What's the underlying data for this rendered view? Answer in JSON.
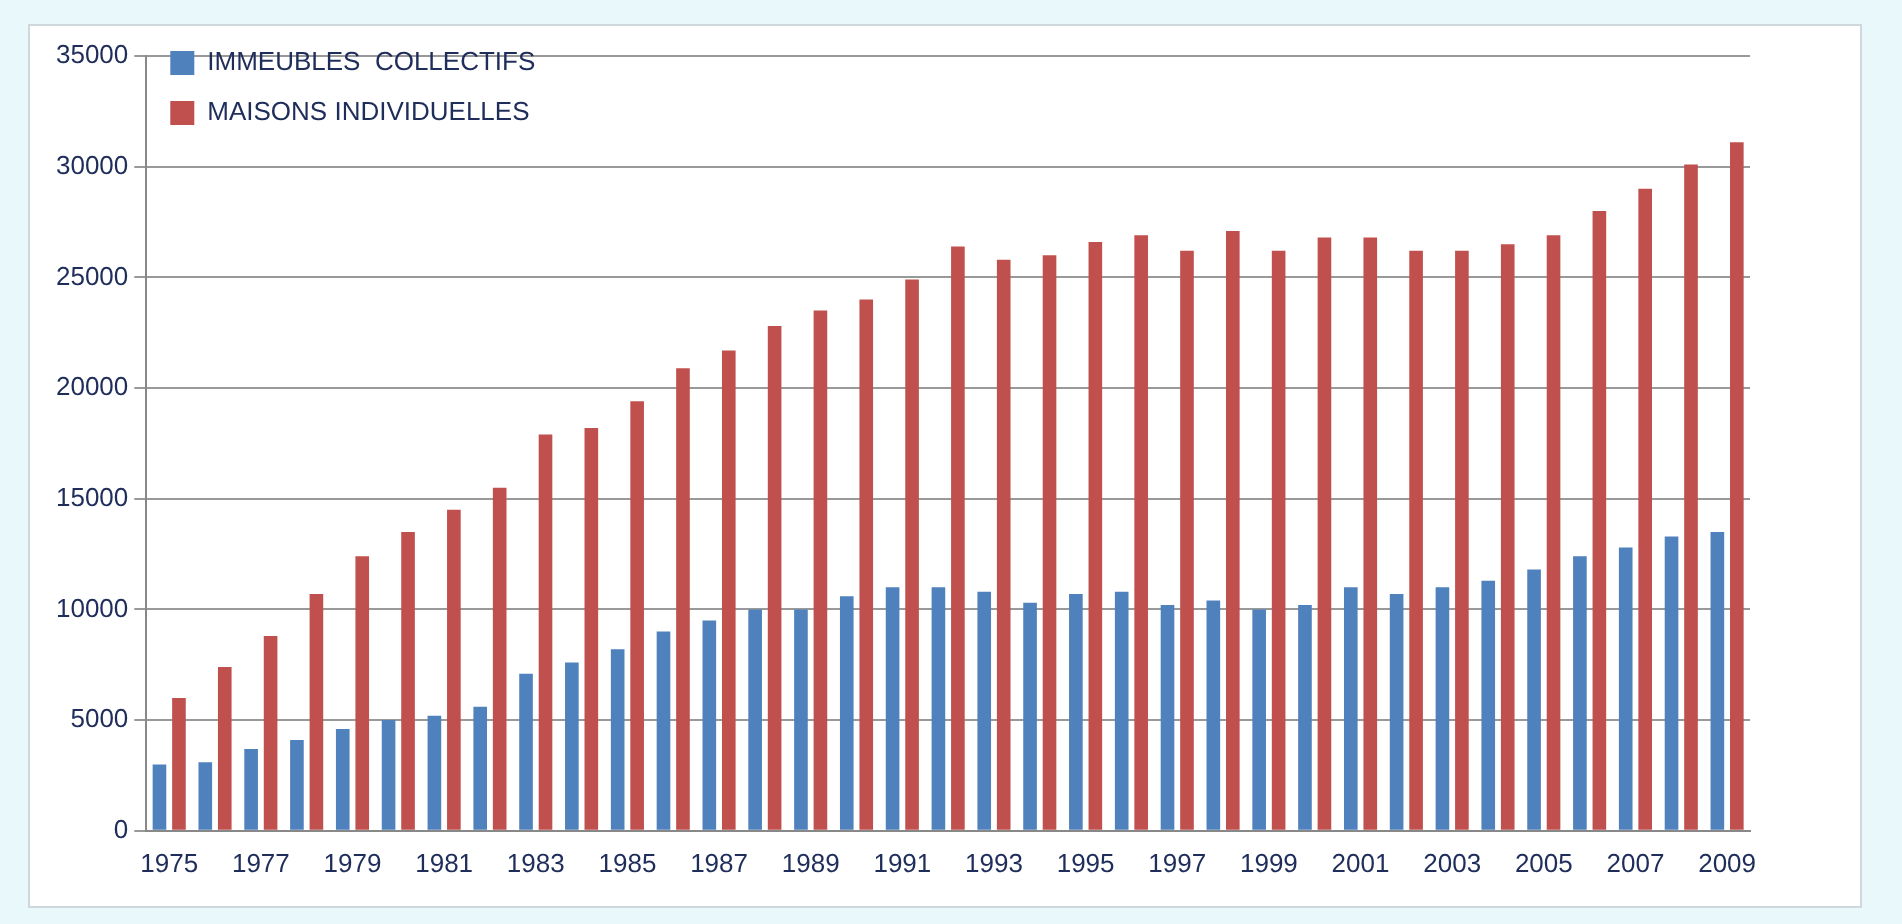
{
  "chart_data": {
    "type": "bar",
    "categories": [
      "1975",
      null,
      "1977",
      null,
      "1979",
      null,
      "1981",
      null,
      "1983",
      null,
      "1985",
      null,
      "1987",
      null,
      "1989",
      null,
      "1991",
      null,
      "1993",
      null,
      "1995",
      null,
      "1997",
      null,
      "1999",
      null,
      "2001",
      null,
      "2003",
      null,
      "2005",
      null,
      "2007",
      null,
      "2009"
    ],
    "series": [
      {
        "name": "IMMEUBLES  COLLECTIFS",
        "color": "#4f81bd",
        "values": [
          3000,
          3100,
          3700,
          4100,
          4600,
          5000,
          5200,
          5600,
          7100,
          7600,
          8200,
          9000,
          9500,
          10000,
          10000,
          10600,
          11000,
          11000,
          10800,
          10300,
          10700,
          10800,
          10200,
          10400,
          10000,
          10200,
          11000,
          10700,
          11000,
          11300,
          11800,
          12400,
          12800,
          13300,
          13500
        ]
      },
      {
        "name": "MAISONS INDIVIDUELLES",
        "color": "#c0504d",
        "values": [
          6000,
          7400,
          8800,
          10700,
          12400,
          13500,
          14500,
          15500,
          17900,
          18200,
          19400,
          20900,
          21700,
          22800,
          23500,
          24000,
          24900,
          26400,
          25800,
          26000,
          26600,
          26900,
          26200,
          27100,
          26200,
          26800,
          26800,
          26200,
          26200,
          26500,
          26900,
          28000,
          29000,
          30100,
          31100
        ]
      }
    ],
    "ylim": [
      0,
      35000
    ],
    "yticks": [
      0,
      5000,
      10000,
      15000,
      20000,
      25000,
      30000,
      35000
    ],
    "grid": "y",
    "legend": "top left"
  }
}
